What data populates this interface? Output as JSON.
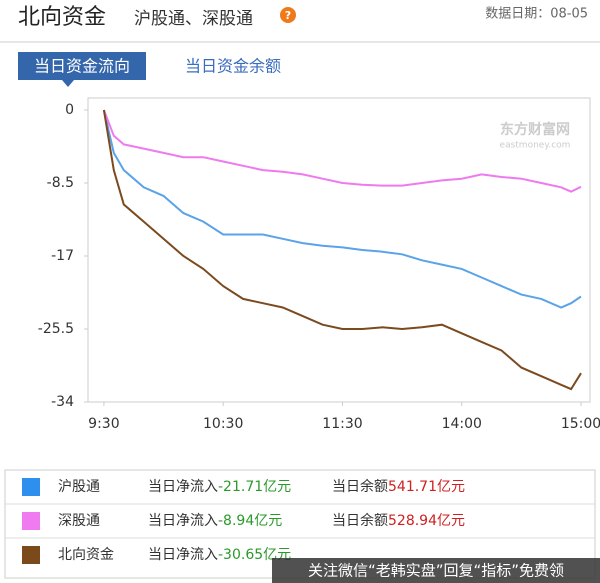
{
  "header": {
    "title": "北向资金",
    "subtitle": "沪股通、深股通",
    "help_icon": "?",
    "date": "数据日期：08-05"
  },
  "tabs": [
    "当日资金流向",
    "当日资金余额"
  ],
  "chart_data": {
    "type": "line",
    "logo": "东方财富网",
    "logo_sub": "eastmoney.com",
    "x": [
      0,
      5,
      10,
      20,
      30,
      40,
      50,
      60,
      70,
      80,
      90,
      100,
      110,
      120,
      130,
      140,
      150,
      160,
      170,
      180,
      190,
      200,
      210,
      220,
      230,
      235,
      240
    ],
    "xlim": [
      -8,
      242
    ],
    "xticks": [
      {
        "value": 0,
        "label": "9:30"
      },
      {
        "value": 60,
        "label": "10:30"
      },
      {
        "value": 120,
        "label": "11:30"
      },
      {
        "value": 180,
        "label": "14:00"
      },
      {
        "value": 240,
        "label": "15:00"
      }
    ],
    "ylim": [
      -34,
      0
    ],
    "yticks": [
      0,
      -8.5,
      -17,
      -25.5,
      -34
    ],
    "series": [
      {
        "name": "沪股通",
        "color": "#5aa3ea",
        "legend_color": "#2f8fef",
        "values": [
          0,
          -5,
          -7,
          -9,
          -10,
          -12,
          -13,
          -14.5,
          -14.5,
          -14.5,
          -15,
          -15.5,
          -15.8,
          -16,
          -16.3,
          -16.5,
          -16.8,
          -17.5,
          -18,
          -18.5,
          -19.5,
          -20.5,
          -21.5,
          -22,
          -23,
          -22.5,
          -21.71
        ]
      },
      {
        "name": "深股通",
        "color": "#ee7aee",
        "legend_color": "#f07af0",
        "values": [
          0,
          -3,
          -4,
          -4.5,
          -5,
          -5.5,
          -5.5,
          -6,
          -6.5,
          -7,
          -7.2,
          -7.5,
          -8,
          -8.5,
          -8.7,
          -8.8,
          -8.8,
          -8.5,
          -8.2,
          -8,
          -7.5,
          -7.8,
          -8,
          -8.5,
          -9,
          -9.5,
          -8.94
        ]
      },
      {
        "name": "北向资金",
        "color": "#7b4a1e",
        "legend_color": "#7a4a1a",
        "values": [
          0,
          -7,
          -11,
          -13,
          -15,
          -17,
          -18.5,
          -20.5,
          -22,
          -22.5,
          -23,
          -24,
          -25,
          -25.5,
          -25.5,
          -25.3,
          -25.5,
          -25.3,
          -25,
          -26,
          -27,
          -28,
          -30,
          -31,
          -32,
          -32.5,
          -30.65
        ]
      }
    ]
  },
  "summary": {
    "inflow_label": "当日净流入",
    "balance_label": "当日余额",
    "unit": "亿元",
    "rows": [
      {
        "inflow": "-21.71",
        "balance": "541.71"
      },
      {
        "inflow": "-8.94",
        "balance": "528.94"
      },
      {
        "inflow": "-30.65"
      }
    ]
  },
  "watermark": "关注微信“老韩实盘”回复“指标”免费领"
}
